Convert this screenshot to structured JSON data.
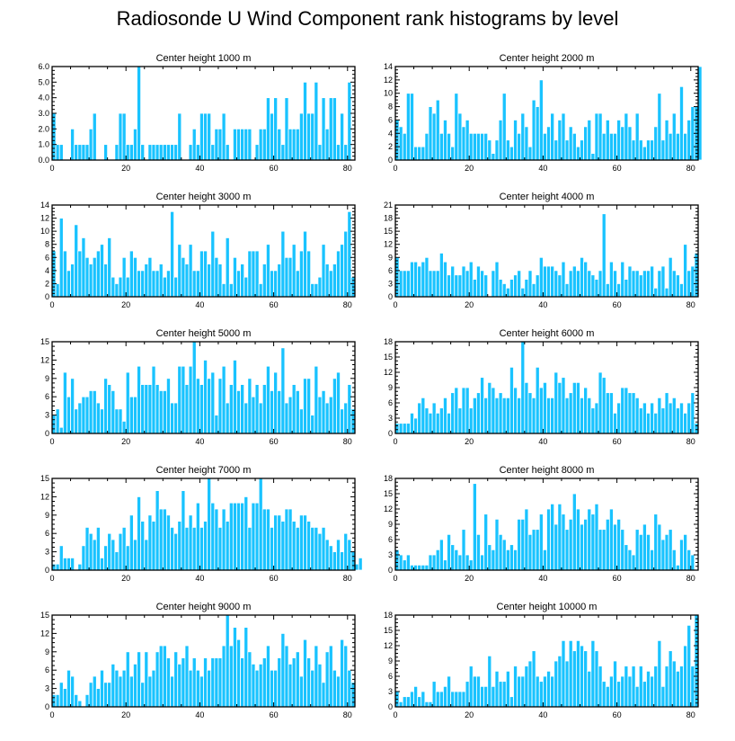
{
  "title": "Radiosonde U Wind Component rank histograms by level",
  "chart_data": [
    {
      "type": "bar",
      "title": "Center height 1000 m",
      "x_start": 0,
      "xlim": [
        0,
        82
      ],
      "xticks": [
        0,
        20,
        40,
        60,
        80
      ],
      "ylim": [
        0,
        6
      ],
      "yticks": [
        "0.0",
        "1.0",
        "2.0",
        "3.0",
        "4.0",
        "5.0",
        "6.0"
      ],
      "values": [
        3,
        1,
        1,
        0,
        0,
        2,
        1,
        1,
        1,
        1,
        2,
        3,
        0,
        0,
        1,
        0,
        0,
        1,
        3,
        3,
        1,
        1,
        2,
        6,
        1,
        0,
        1,
        1,
        1,
        1,
        1,
        1,
        1,
        1,
        3,
        0,
        0,
        1,
        2,
        1,
        3,
        3,
        3,
        1,
        2,
        2,
        3,
        1,
        0,
        2,
        2,
        2,
        2,
        2,
        0,
        1,
        2,
        2,
        4,
        3,
        4,
        2,
        1,
        4,
        2,
        2,
        2,
        3,
        5,
        3,
        3,
        5,
        1,
        4,
        2,
        4,
        4,
        1,
        3,
        1,
        5,
        0
      ]
    },
    {
      "type": "bar",
      "title": "Center height 2000 m",
      "x_start": 0,
      "xlim": [
        0,
        82
      ],
      "xticks": [
        0,
        20,
        40,
        60,
        80
      ],
      "ylim": [
        0,
        14
      ],
      "yticks": [
        "0",
        "2",
        "4",
        "6",
        "8",
        "10",
        "12",
        "14"
      ],
      "values": [
        6,
        5,
        4,
        10,
        10,
        2,
        2,
        2,
        4,
        8,
        7,
        9,
        4,
        6,
        4,
        2,
        10,
        7,
        5,
        6,
        4,
        4,
        4,
        4,
        4,
        3,
        1,
        3,
        6,
        10,
        3,
        2,
        6,
        4,
        7,
        5,
        2,
        9,
        8,
        12,
        4,
        5,
        7,
        3,
        6,
        7,
        3,
        5,
        4,
        2,
        3,
        5,
        6,
        1,
        7,
        7,
        4,
        6,
        4,
        4,
        6,
        5,
        7,
        5,
        3,
        7,
        3,
        2,
        3,
        3,
        5,
        10,
        3,
        6,
        4,
        7,
        4,
        11,
        4,
        6,
        8,
        8,
        14
      ]
    },
    {
      "type": "bar",
      "title": "Center height 3000 m",
      "x_start": 0,
      "xlim": [
        0,
        82
      ],
      "xticks": [
        0,
        20,
        40,
        60,
        80
      ],
      "ylim": [
        0,
        14
      ],
      "yticks": [
        "0",
        "2",
        "4",
        "6",
        "8",
        "10",
        "12",
        "14"
      ],
      "values": [
        7,
        2,
        12,
        7,
        4,
        5,
        11,
        7,
        9,
        6,
        5,
        6,
        7,
        8,
        5,
        9,
        3,
        2,
        3,
        6,
        3,
        7,
        6,
        4,
        4,
        5,
        6,
        4,
        4,
        5,
        3,
        4,
        13,
        3,
        8,
        6,
        5,
        8,
        4,
        4,
        7,
        7,
        5,
        10,
        6,
        5,
        2,
        9,
        2,
        6,
        4,
        5,
        3,
        7,
        7,
        7,
        2,
        5,
        8,
        4,
        4,
        5,
        10,
        6,
        6,
        8,
        4,
        7,
        10,
        7,
        2,
        2,
        3,
        8,
        5,
        4,
        5,
        7,
        8,
        10,
        13,
        3
      ]
    },
    {
      "type": "bar",
      "title": "Center height 4000 m",
      "x_start": 0,
      "xlim": [
        0,
        82
      ],
      "xticks": [
        0,
        20,
        40,
        60,
        80
      ],
      "ylim": [
        0,
        21
      ],
      "yticks": [
        "0",
        "3",
        "6",
        "9",
        "12",
        "15",
        "18",
        "21"
      ],
      "values": [
        9,
        6,
        6,
        6,
        8,
        8,
        7,
        8,
        9,
        6,
        6,
        6,
        10,
        8,
        5,
        7,
        5,
        5,
        7,
        6,
        8,
        4,
        7,
        6,
        5,
        0,
        6,
        8,
        4,
        3,
        2,
        4,
        5,
        6,
        2,
        4,
        6,
        3,
        5,
        9,
        7,
        7,
        7,
        6,
        5,
        8,
        3,
        6,
        7,
        6,
        9,
        8,
        6,
        5,
        4,
        6,
        19,
        3,
        8,
        6,
        3,
        8,
        4,
        7,
        6,
        6,
        5,
        6,
        6,
        7,
        2,
        6,
        7,
        2,
        9,
        6,
        5,
        3,
        12,
        6,
        7,
        10
      ]
    },
    {
      "type": "bar",
      "title": "Center height 5000 m",
      "x_start": 0,
      "xlim": [
        0,
        82
      ],
      "xticks": [
        0,
        20,
        40,
        60,
        80
      ],
      "ylim": [
        0,
        15
      ],
      "yticks": [
        "0",
        "3",
        "6",
        "9",
        "12",
        "15"
      ],
      "values": [
        3,
        4,
        1,
        10,
        6,
        9,
        4,
        5,
        6,
        6,
        7,
        7,
        5,
        4,
        9,
        8,
        7,
        4,
        4,
        2,
        10,
        6,
        6,
        11,
        8,
        8,
        8,
        11,
        8,
        7,
        7,
        9,
        5,
        5,
        11,
        11,
        8,
        11,
        15,
        9,
        8,
        12,
        9,
        10,
        3,
        9,
        11,
        5,
        8,
        12,
        7,
        8,
        5,
        9,
        6,
        8,
        5,
        8,
        11,
        7,
        10,
        7,
        14,
        5,
        6,
        8,
        7,
        4,
        9,
        9,
        3,
        11,
        6,
        7,
        5,
        6,
        9,
        10,
        4,
        5,
        8,
        4
      ]
    },
    {
      "type": "bar",
      "title": "Center height 6000 m",
      "x_start": 0,
      "xlim": [
        0,
        82
      ],
      "xticks": [
        0,
        20,
        40,
        60,
        80
      ],
      "ylim": [
        0,
        18
      ],
      "yticks": [
        "0",
        "3",
        "6",
        "9",
        "12",
        "15",
        "18"
      ],
      "values": [
        2,
        2,
        2,
        2,
        4,
        3,
        6,
        7,
        5,
        4,
        6,
        4,
        5,
        7,
        4,
        8,
        9,
        5,
        9,
        9,
        5,
        7,
        8,
        11,
        7,
        10,
        9,
        7,
        8,
        7,
        7,
        13,
        9,
        7,
        18,
        10,
        8,
        7,
        13,
        9,
        10,
        7,
        7,
        12,
        10,
        11,
        7,
        8,
        10,
        10,
        7,
        9,
        7,
        5,
        6,
        12,
        11,
        8,
        8,
        4,
        6,
        9,
        9,
        8,
        8,
        7,
        5,
        6,
        4,
        6,
        4,
        7,
        5,
        8,
        6,
        7,
        5,
        6,
        4,
        6,
        8,
        2
      ]
    },
    {
      "type": "bar",
      "title": "Center height 7000 m",
      "x_start": 0,
      "xlim": [
        0,
        82
      ],
      "xticks": [
        0,
        20,
        40,
        60,
        80
      ],
      "ylim": [
        0,
        15
      ],
      "yticks": [
        "0",
        "3",
        "6",
        "9",
        "12",
        "15"
      ],
      "values": [
        1,
        1,
        4,
        2,
        2,
        2,
        0,
        1,
        4,
        7,
        6,
        5,
        7,
        2,
        4,
        6,
        5,
        3,
        6,
        7,
        4,
        9,
        5,
        12,
        8,
        5,
        9,
        8,
        13,
        10,
        10,
        9,
        7,
        6,
        8,
        13,
        7,
        9,
        7,
        11,
        7,
        8,
        15,
        11,
        10,
        7,
        10,
        8,
        11,
        11,
        11,
        11,
        12,
        7,
        11,
        11,
        15,
        10,
        10,
        7,
        9,
        9,
        8,
        10,
        10,
        8,
        7,
        9,
        9,
        8,
        7,
        7,
        6,
        7,
        5,
        4,
        3,
        5,
        3,
        6,
        5,
        3,
        1,
        2
      ]
    },
    {
      "type": "bar",
      "title": "Center height 8000 m",
      "x_start": 0,
      "xlim": [
        0,
        82
      ],
      "xticks": [
        0,
        20,
        40,
        60,
        80
      ],
      "ylim": [
        0,
        18
      ],
      "yticks": [
        "0",
        "3",
        "6",
        "9",
        "12",
        "15",
        "18"
      ],
      "values": [
        4,
        3,
        2,
        3,
        1,
        1,
        1,
        1,
        1,
        3,
        3,
        4,
        6,
        2,
        7,
        5,
        4,
        3,
        8,
        3,
        2,
        17,
        7,
        3,
        11,
        5,
        4,
        10,
        7,
        6,
        4,
        5,
        4,
        10,
        10,
        12,
        7,
        8,
        8,
        11,
        4,
        12,
        13,
        9,
        13,
        11,
        8,
        10,
        15,
        12,
        9,
        10,
        12,
        11,
        13,
        8,
        8,
        10,
        12,
        9,
        10,
        8,
        5,
        4,
        3,
        8,
        7,
        9,
        7,
        4,
        11,
        9,
        6,
        7,
        8,
        4,
        1,
        6,
        7,
        4,
        3
      ]
    },
    {
      "type": "bar",
      "title": "Center height 9000 m",
      "x_start": 0,
      "xlim": [
        0,
        82
      ],
      "xticks": [
        0,
        20,
        40,
        60,
        80
      ],
      "ylim": [
        0,
        15
      ],
      "yticks": [
        "0",
        "3",
        "6",
        "9",
        "12",
        "15"
      ],
      "values": [
        2,
        2,
        4,
        3,
        6,
        5,
        2,
        1,
        0,
        2,
        4,
        5,
        3,
        6,
        4,
        4,
        7,
        6,
        5,
        6,
        9,
        5,
        7,
        9,
        4,
        9,
        5,
        6,
        9,
        10,
        10,
        8,
        5,
        9,
        7,
        8,
        10,
        6,
        8,
        6,
        5,
        8,
        6,
        8,
        8,
        8,
        10,
        15,
        10,
        13,
        11,
        8,
        13,
        9,
        7,
        6,
        7,
        8,
        10,
        6,
        6,
        8,
        12,
        10,
        7,
        8,
        9,
        5,
        11,
        8,
        6,
        10,
        7,
        4,
        9,
        10,
        6,
        5,
        11,
        10,
        6,
        4
      ]
    },
    {
      "type": "bar",
      "title": "Center height 10000 m",
      "x_start": 0,
      "xlim": [
        0,
        82
      ],
      "xticks": [
        0,
        20,
        40,
        60,
        80
      ],
      "ylim": [
        0,
        18
      ],
      "yticks": [
        "0",
        "3",
        "6",
        "9",
        "12",
        "15",
        "18"
      ],
      "values": [
        3,
        1,
        2,
        2,
        3,
        4,
        2,
        3,
        1,
        1,
        5,
        3,
        3,
        4,
        6,
        3,
        3,
        3,
        3,
        5,
        8,
        6,
        6,
        4,
        4,
        10,
        4,
        7,
        5,
        5,
        7,
        2,
        8,
        6,
        6,
        8,
        9,
        11,
        6,
        5,
        6,
        7,
        6,
        9,
        10,
        13,
        9,
        13,
        11,
        13,
        12,
        11,
        7,
        13,
        11,
        8,
        5,
        4,
        6,
        9,
        5,
        6,
        8,
        6,
        8,
        4,
        8,
        5,
        7,
        6,
        8,
        13,
        4,
        8,
        11,
        9,
        7,
        8,
        12,
        16,
        8,
        18
      ]
    }
  ]
}
